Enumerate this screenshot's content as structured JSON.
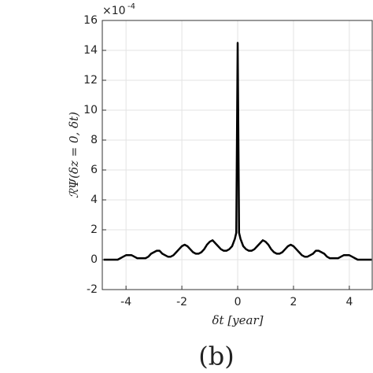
{
  "chart_data": {
    "type": "line",
    "x": [
      -4.8,
      -4.7,
      -4.6,
      -4.5,
      -4.4,
      -4.3,
      -4.2,
      -4.1,
      -4.0,
      -3.9,
      -3.8,
      -3.7,
      -3.6,
      -3.5,
      -3.4,
      -3.3,
      -3.2,
      -3.1,
      -3.0,
      -2.9,
      -2.8,
      -2.7,
      -2.6,
      -2.5,
      -2.4,
      -2.3,
      -2.2,
      -2.1,
      -2.0,
      -1.9,
      -1.8,
      -1.7,
      -1.6,
      -1.5,
      -1.4,
      -1.3,
      -1.2,
      -1.1,
      -1.0,
      -0.9,
      -0.8,
      -0.7,
      -0.6,
      -0.5,
      -0.4,
      -0.3,
      -0.2,
      -0.1,
      -0.05,
      0,
      0.05,
      0.1,
      0.2,
      0.3,
      0.4,
      0.5,
      0.6,
      0.7,
      0.8,
      0.9,
      1.0,
      1.1,
      1.2,
      1.3,
      1.4,
      1.5,
      1.6,
      1.7,
      1.8,
      1.9,
      2.0,
      2.1,
      2.2,
      2.3,
      2.4,
      2.5,
      2.6,
      2.7,
      2.8,
      2.9,
      3.0,
      3.1,
      3.2,
      3.3,
      3.4,
      3.5,
      3.6,
      3.7,
      3.8,
      3.9,
      4.0,
      4.1,
      4.2,
      4.3,
      4.4,
      4.5,
      4.6,
      4.7,
      4.8
    ],
    "values": [
      0.0,
      0.0,
      0.0,
      0.0,
      0.0,
      0.0,
      0.1,
      0.2,
      0.3,
      0.3,
      0.3,
      0.2,
      0.1,
      0.1,
      0.1,
      0.1,
      0.2,
      0.4,
      0.5,
      0.6,
      0.6,
      0.4,
      0.3,
      0.2,
      0.2,
      0.3,
      0.5,
      0.7,
      0.9,
      1.0,
      0.9,
      0.7,
      0.5,
      0.4,
      0.4,
      0.5,
      0.7,
      1.0,
      1.2,
      1.3,
      1.1,
      0.9,
      0.7,
      0.6,
      0.6,
      0.7,
      0.9,
      1.4,
      1.8,
      14.5,
      1.8,
      1.4,
      0.9,
      0.7,
      0.6,
      0.6,
      0.7,
      0.9,
      1.1,
      1.3,
      1.2,
      1.0,
      0.7,
      0.5,
      0.4,
      0.4,
      0.5,
      0.7,
      0.9,
      1.0,
      0.9,
      0.7,
      0.5,
      0.3,
      0.2,
      0.2,
      0.3,
      0.4,
      0.6,
      0.6,
      0.5,
      0.4,
      0.2,
      0.1,
      0.1,
      0.1,
      0.1,
      0.2,
      0.3,
      0.3,
      0.3,
      0.2,
      0.1,
      0.0,
      0.0,
      0.0,
      0.0,
      0.0,
      0.0
    ],
    "color": "#000000",
    "xlim": [
      -4.85,
      4.82
    ],
    "ylim": [
      -2,
      16
    ],
    "xticks": [
      -4,
      -2,
      0,
      2,
      4
    ],
    "yticks": [
      -2,
      0,
      2,
      4,
      6,
      8,
      10,
      12,
      14,
      16
    ],
    "grid": true,
    "y_multiplier": "×10",
    "y_exponent": "-4",
    "ylabel": "ℛΨ(δz = 0, δt)",
    "xlabel": "δt [year]",
    "caption": "(b)"
  }
}
